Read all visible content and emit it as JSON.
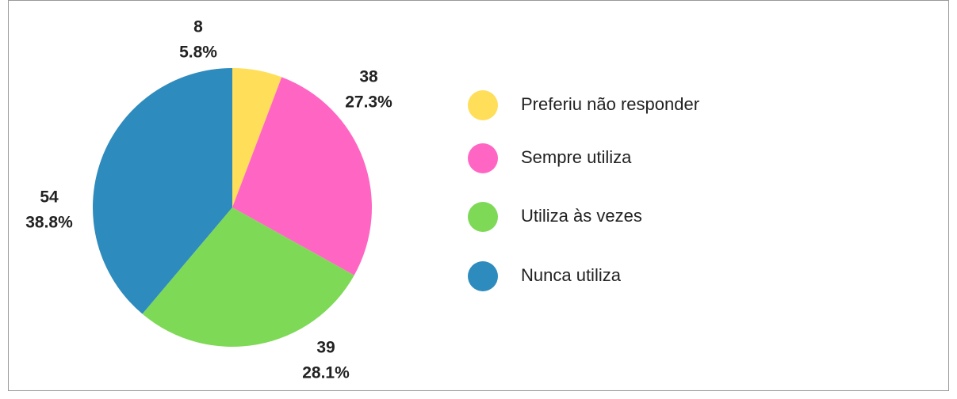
{
  "chart_data": {
    "type": "pie",
    "categories": [
      "Preferiu não responder",
      "Sempre utiliza",
      "Utiliza às vezes",
      "Nunca utiliza"
    ],
    "values": [
      8,
      38,
      39,
      54
    ],
    "percent_labels": [
      "5.8%",
      "27.3%",
      "28.1%",
      "38.8%"
    ],
    "colors": [
      "#ffde59",
      "#ff66c4",
      "#7ed957",
      "#2e8bbd"
    ],
    "legend": "right"
  }
}
